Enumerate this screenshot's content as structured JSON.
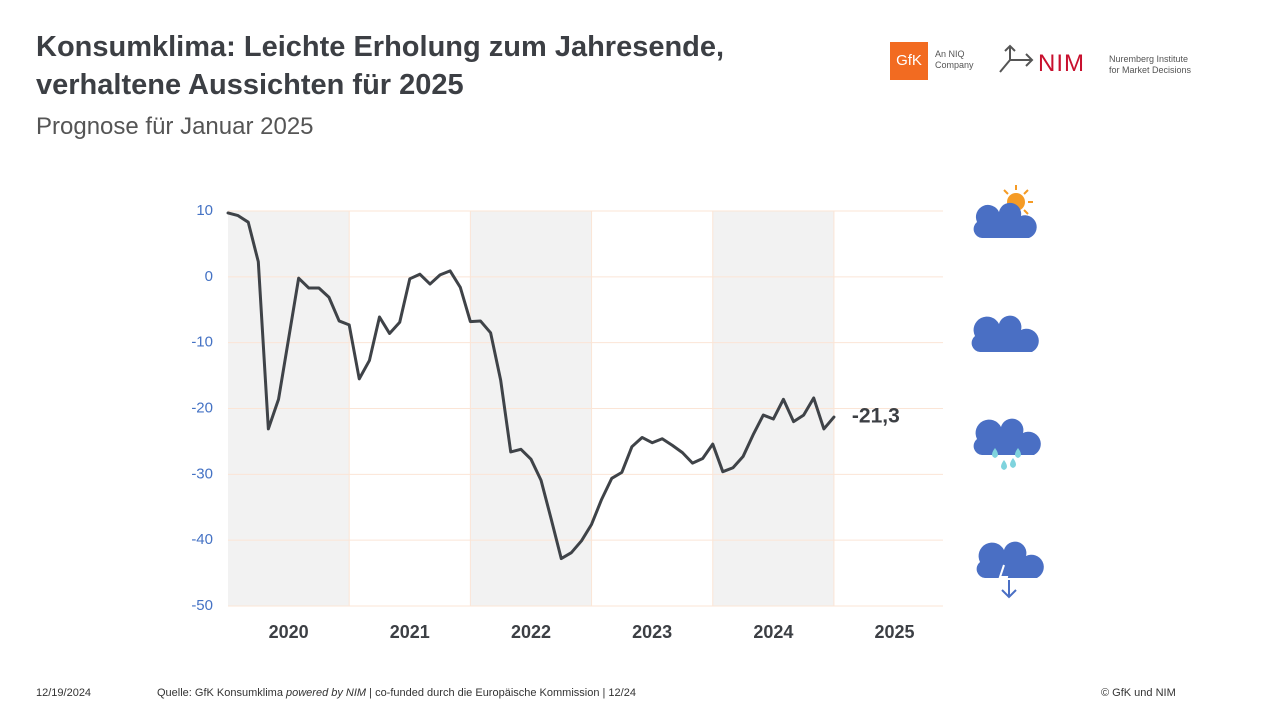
{
  "header": {
    "title_line1": "Konsumklima: Leichte Erholung zum Jahresende,",
    "title_line2": "verhaltene Aussichten für 2025",
    "subtitle": "Prognose für Januar 2025"
  },
  "logos": {
    "gfk": "GfK",
    "gfk_note_line1": "An NIQ",
    "gfk_note_line2": "Company",
    "nim": "NIM",
    "nim_note_line1": "Nuremberg Institute",
    "nim_note_line2": "for Market Decisions"
  },
  "chart_data": {
    "type": "line",
    "x": [
      2020,
      2020.083,
      2020.167,
      2020.25,
      2020.333,
      2020.417,
      2020.5,
      2020.583,
      2020.667,
      2020.75,
      2020.833,
      2020.917,
      2021,
      2021.083,
      2021.167,
      2021.25,
      2021.333,
      2021.417,
      2021.5,
      2021.583,
      2021.667,
      2021.75,
      2021.833,
      2021.917,
      2022,
      2022.083,
      2022.167,
      2022.25,
      2022.333,
      2022.417,
      2022.5,
      2022.583,
      2022.667,
      2022.75,
      2022.833,
      2022.917,
      2023,
      2023.083,
      2023.167,
      2023.25,
      2023.333,
      2023.417,
      2023.5,
      2023.583,
      2023.667,
      2023.75,
      2023.833,
      2023.917,
      2024,
      2024.083,
      2024.167,
      2024.25,
      2024.333,
      2024.417,
      2024.5,
      2024.583,
      2024.667,
      2024.75,
      2024.833,
      2024.917,
      2025
    ],
    "series": [
      {
        "color": "#3f4348",
        "values": [
          9.7,
          9.3,
          8.3,
          2.3,
          -23.1,
          -18.6,
          -9.4,
          -0.2,
          -1.7,
          -1.7,
          -3.1,
          -6.7,
          -7.3,
          -15.5,
          -12.7,
          -6.1,
          -8.6,
          -6.9,
          -0.3,
          0.4,
          -1.1,
          0.3,
          0.9,
          -1.6,
          -6.8,
          -6.7,
          -8.5,
          -15.7,
          -26.6,
          -26.2,
          -27.7,
          -30.9,
          -36.8,
          -42.8,
          -41.9,
          -40.1,
          -37.6,
          -33.8,
          -30.6,
          -29.7,
          -25.8,
          -24.4,
          -25.2,
          -24.6,
          -25.6,
          -26.7,
          -28.3,
          -27.6,
          -25.4,
          -29.6,
          -29.0,
          -27.3,
          -24.0,
          -21.0,
          -21.6,
          -18.6,
          -22.0,
          -21.0,
          -18.4,
          -23.1,
          -21.3
        ],
        "end_label": "-21,3"
      }
    ],
    "xlim": [
      2020,
      2025.9
    ],
    "xticks": [
      {
        "value": 2020.5,
        "label": "2020"
      },
      {
        "value": 2021.5,
        "label": "2021"
      },
      {
        "value": 2022.5,
        "label": "2022"
      },
      {
        "value": 2023.5,
        "label": "2023"
      },
      {
        "value": 2024.5,
        "label": "2024"
      },
      {
        "value": 2025.5,
        "label": "2025"
      }
    ],
    "xgrid": [
      2021,
      2022,
      2023,
      2024,
      2025
    ],
    "shaded_ranges": [
      [
        2020,
        2021
      ],
      [
        2022,
        2023
      ],
      [
        2024,
        2025
      ]
    ],
    "shade_color": "#f2f2f2",
    "ylim": [
      -50,
      10
    ],
    "yticks": [
      -50,
      -40,
      -30,
      -20,
      -10,
      0,
      10
    ],
    "grid": true
  },
  "footer": {
    "date": "12/19/2024",
    "source_a": "Quelle: GfK Konsumklima ",
    "source_b": "powered by NIM",
    "source_c": " | co-funded durch die Europäische Kommission | 12/24",
    "copyright": "© GfK und NIM"
  }
}
